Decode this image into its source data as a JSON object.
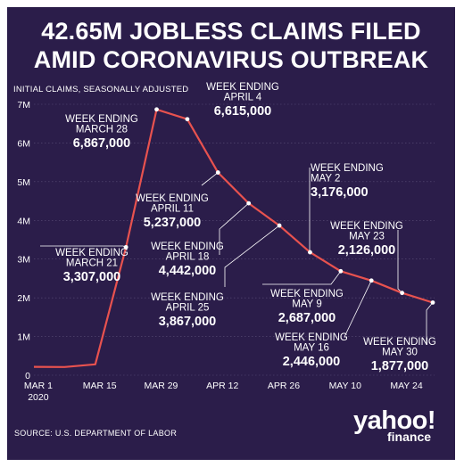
{
  "title_lines": [
    "42.65M JOBLESS CLAIMS FILED",
    "AMID CORONAVIRUS OUTBREAK"
  ],
  "source": "SOURCE:  U.S. DEPARTMENT OF LABOR",
  "logo": {
    "main": "yahoo!",
    "sub": "finance"
  },
  "colors": {
    "background": "#2b1d4a",
    "line": "#e8524f",
    "text": "#ffffff",
    "grid": "#5b4f78"
  },
  "chart_data": {
    "type": "line",
    "title": "42.65M JOBLESS CLAIMS FILED AMID CORONAVIRUS OUTBREAK",
    "ylabel": "INITIAL CLAIMS, SEASONALLY ADJUSTED",
    "xlabel": "",
    "ylim": [
      0,
      7000000
    ],
    "yticks": [
      0,
      1000000,
      2000000,
      3000000,
      4000000,
      5000000,
      6000000,
      7000000
    ],
    "ytick_labels": [
      "0",
      "1M",
      "2M",
      "3M",
      "4M",
      "5M",
      "6M",
      "7M"
    ],
    "xlim": [
      "2020-02-29",
      "2020-05-30"
    ],
    "xticks": [
      {
        "date": "2020-03-01",
        "lines": [
          "MAR 1",
          "2020"
        ]
      },
      {
        "date": "2020-03-15",
        "lines": [
          "MAR 15"
        ]
      },
      {
        "date": "2020-03-29",
        "lines": [
          "MAR 29"
        ]
      },
      {
        "date": "2020-04-12",
        "lines": [
          "APR 12"
        ]
      },
      {
        "date": "2020-04-26",
        "lines": [
          "APR 26"
        ]
      },
      {
        "date": "2020-05-10",
        "lines": [
          "MAY 10"
        ]
      },
      {
        "date": "2020-05-24",
        "lines": [
          "MAY 24"
        ]
      }
    ],
    "grid": true,
    "series": [
      {
        "x": [
          "2020-02-29",
          "2020-03-07",
          "2020-03-14",
          "2020-03-21",
          "2020-03-28",
          "2020-04-04",
          "2020-04-11",
          "2020-04-18",
          "2020-04-25",
          "2020-05-02",
          "2020-05-09",
          "2020-05-16",
          "2020-05-23",
          "2020-05-30"
        ],
        "y": [
          217000,
          211000,
          282000,
          3307000,
          6867000,
          6615000,
          5237000,
          4442000,
          3867000,
          3176000,
          2687000,
          2446000,
          2126000,
          1877000
        ]
      }
    ],
    "annotations": [
      {
        "date": "2020-03-21",
        "lines": [
          "WEEK ENDING",
          "MARCH 21"
        ],
        "value": "3,307,000"
      },
      {
        "date": "2020-03-28",
        "lines": [
          "WEEK ENDING",
          "MARCH 28"
        ],
        "value": "6,867,000"
      },
      {
        "date": "2020-04-04",
        "lines": [
          "WEEK ENDING",
          "APRIL 4"
        ],
        "value": "6,615,000"
      },
      {
        "date": "2020-04-11",
        "lines": [
          "WEEK ENDING",
          "APRIL 11"
        ],
        "value": "5,237,000"
      },
      {
        "date": "2020-04-18",
        "lines": [
          "WEEK ENDING",
          "APRIL 18"
        ],
        "value": "4,442,000"
      },
      {
        "date": "2020-04-25",
        "lines": [
          "WEEK ENDING",
          "APRIL 25"
        ],
        "value": "3,867,000"
      },
      {
        "date": "2020-05-02",
        "lines": [
          "WEEK ENDING",
          "MAY 2"
        ],
        "value": "3,176,000"
      },
      {
        "date": "2020-05-09",
        "lines": [
          "WEEK ENDING",
          "MAY 9"
        ],
        "value": "2,687,000"
      },
      {
        "date": "2020-05-16",
        "lines": [
          "WEEK ENDING",
          "MAY 16"
        ],
        "value": "2,446,000"
      },
      {
        "date": "2020-05-23",
        "lines": [
          "WEEK ENDING",
          "MAY 23"
        ],
        "value": "2,126,000"
      },
      {
        "date": "2020-05-30",
        "lines": [
          "WEEK ENDING",
          "MAY 30"
        ],
        "value": "1,877,000"
      }
    ]
  }
}
